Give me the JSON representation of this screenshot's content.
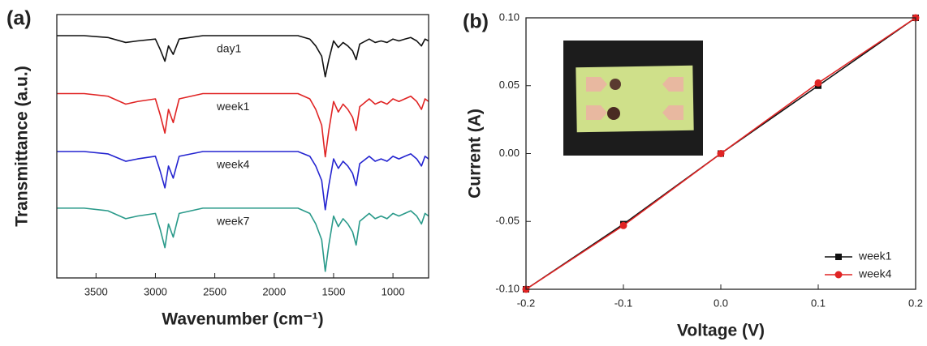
{
  "chart_data": [
    {
      "type": "line",
      "panel_label": "(a)",
      "x_label": "Wavenumber (cm⁻¹)",
      "y_label": "Transmittance (a.u.)",
      "xlim": [
        3830,
        700
      ],
      "ylim": [
        0,
        100
      ],
      "xticks": [
        3500,
        3000,
        2500,
        2000,
        1500,
        1000
      ],
      "series_labels": true,
      "x": [
        3830,
        3600,
        3400,
        3250,
        3150,
        3000,
        2960,
        2920,
        2890,
        2850,
        2800,
        2600,
        2300,
        2000,
        1800,
        1700,
        1650,
        1600,
        1570,
        1540,
        1500,
        1460,
        1420,
        1380,
        1340,
        1310,
        1280,
        1200,
        1150,
        1100,
        1050,
        1000,
        950,
        900,
        850,
        800,
        760,
        730,
        700
      ],
      "series": [
        {
          "name": "day1",
          "color": "#111111",
          "values": [
            92,
            92,
            91.3,
            89.4,
            90,
            90.7,
            86.8,
            82.3,
            88.1,
            84.9,
            90.7,
            92,
            92,
            92,
            92,
            90.7,
            88.1,
            84.2,
            76.4,
            82.9,
            90,
            87.5,
            89.4,
            88.1,
            86.2,
            82.9,
            88.8,
            90.7,
            89.4,
            90,
            89.4,
            90.7,
            90,
            90.7,
            91.3,
            90,
            88.1,
            90.7,
            90
          ]
        },
        {
          "name": "week1",
          "color": "#e02424",
          "values": [
            70,
            70,
            69,
            66,
            67,
            68,
            62,
            55,
            64,
            59,
            68,
            70,
            70,
            70,
            70,
            68,
            64,
            58,
            46,
            56,
            67,
            63,
            66,
            64,
            61,
            56,
            65,
            68,
            66,
            67,
            66,
            68,
            67,
            68,
            69,
            67,
            64,
            68,
            67
          ]
        },
        {
          "name": "week4",
          "color": "#2424d0",
          "values": [
            48,
            48,
            47.1,
            44.3,
            45.2,
            46.2,
            40.6,
            34.2,
            42.5,
            37.9,
            46.2,
            48,
            48,
            48,
            48,
            46.2,
            42.5,
            37,
            25.9,
            35.1,
            45.2,
            41.6,
            44.3,
            42.5,
            39.7,
            35.1,
            43.4,
            46.2,
            44.3,
            45.2,
            44.3,
            46.2,
            45.2,
            46.2,
            47.1,
            45.2,
            42.5,
            46.2,
            45.2
          ]
        },
        {
          "name": "week7",
          "color": "#2a9a8a",
          "values": [
            26.5,
            26.5,
            25.5,
            22.5,
            23.5,
            24.5,
            18.5,
            11.5,
            20.5,
            15.5,
            24.5,
            26.5,
            26.5,
            26.5,
            26.5,
            24.5,
            20.5,
            14.5,
            2.5,
            12.5,
            23.5,
            19.5,
            22.5,
            20.5,
            17.5,
            12.5,
            21.5,
            24.5,
            22.5,
            23.5,
            22.5,
            24.5,
            23.5,
            24.5,
            25.5,
            23.5,
            20.5,
            24.5,
            23.5
          ]
        }
      ]
    },
    {
      "type": "line",
      "panel_label": "(b)",
      "x_label": "Voltage (V)",
      "y_label": "Current (A)",
      "xlim": [
        -0.2,
        0.2
      ],
      "ylim": [
        -0.1,
        0.1
      ],
      "xticks": [
        -0.2,
        -0.1,
        {
          "value": 0,
          "label": "0.0"
        },
        0.1,
        0.2
      ],
      "yticks": [
        {
          "value": -0.1,
          "label": "-0.10"
        },
        {
          "value": -0.05,
          "label": "-0.05"
        },
        {
          "value": 0,
          "label": "0.00"
        },
        {
          "value": 0.05,
          "label": "0.05"
        },
        {
          "value": 0.1,
          "label": "0.10"
        }
      ],
      "legend": "lower right",
      "x": [
        -0.2,
        -0.1,
        0,
        0.1,
        0.2
      ],
      "series": [
        {
          "name": "week1",
          "color": "#111111",
          "marker": "square",
          "values": [
            -0.1,
            -0.052,
            0,
            0.05,
            0.1
          ]
        },
        {
          "name": "week4",
          "color": "#e02424",
          "marker": "circle",
          "values": [
            -0.1,
            -0.053,
            0,
            0.052,
            0.1
          ]
        }
      ]
    }
  ]
}
